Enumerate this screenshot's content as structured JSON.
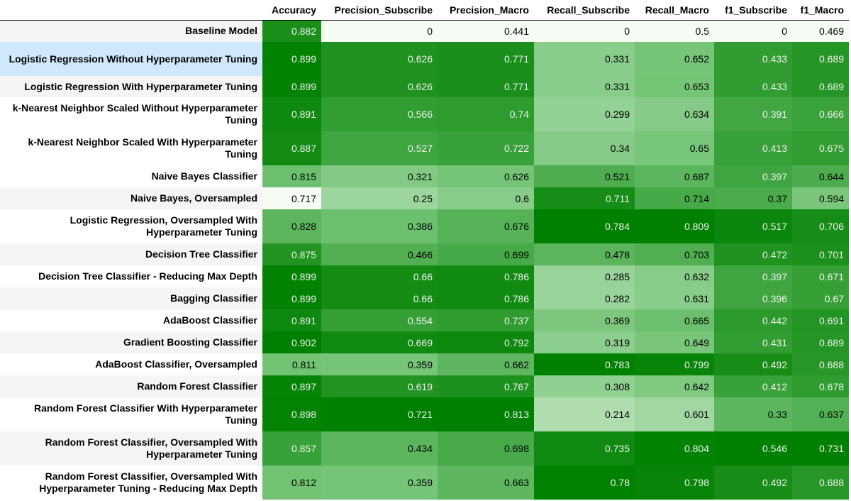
{
  "chart_data": {
    "type": "table",
    "columns": [
      "Accuracy",
      "Precision_Subscribe",
      "Precision_Macro",
      "Recall_Subscribe",
      "Recall_Macro",
      "f1_Subscribe",
      "f1_Macro"
    ],
    "colormap": {
      "low": "#f7fcf5",
      "mid": "#74c476",
      "high": "#008000"
    },
    "rows": [
      {
        "label": "Baseline Model",
        "values": [
          "0.882",
          "0",
          "0.441",
          "0",
          "0.5",
          "0",
          "0.469"
        ]
      },
      {
        "label": "Logistic Regression Without Hyperparameter Tuning",
        "values": [
          "0.899",
          "0.626",
          "0.771",
          "0.331",
          "0.652",
          "0.433",
          "0.689"
        ]
      },
      {
        "label": "Logistic Regression With Hyperparameter Tuning",
        "values": [
          "0.899",
          "0.626",
          "0.771",
          "0.331",
          "0.653",
          "0.433",
          "0.689"
        ]
      },
      {
        "label": "k-Nearest Neighbor Scaled Without Hyperparameter Tuning",
        "values": [
          "0.891",
          "0.566",
          "0.74",
          "0.299",
          "0.634",
          "0.391",
          "0.666"
        ]
      },
      {
        "label": "k-Nearest Neighbor Scaled With Hyperparameter Tuning",
        "values": [
          "0.887",
          "0.527",
          "0.722",
          "0.34",
          "0.65",
          "0.413",
          "0.675"
        ]
      },
      {
        "label": "Naive Bayes Classifier",
        "values": [
          "0.815",
          "0.321",
          "0.626",
          "0.521",
          "0.687",
          "0.397",
          "0.644"
        ]
      },
      {
        "label": "Naive Bayes, Oversampled",
        "values": [
          "0.717",
          "0.25",
          "0.6",
          "0.711",
          "0.714",
          "0.37",
          "0.594"
        ]
      },
      {
        "label": "Logistic Regression, Oversampled With Hyperparameter Tuning",
        "values": [
          "0.828",
          "0.386",
          "0.676",
          "0.784",
          "0.809",
          "0.517",
          "0.706"
        ]
      },
      {
        "label": "Decision Tree Classifier",
        "values": [
          "0.875",
          "0.466",
          "0.699",
          "0.478",
          "0.703",
          "0.472",
          "0.701"
        ]
      },
      {
        "label": "Decision Tree Classifier - Reducing Max Depth",
        "values": [
          "0.899",
          "0.66",
          "0.786",
          "0.285",
          "0.632",
          "0.397",
          "0.671"
        ]
      },
      {
        "label": "Bagging Classifier",
        "values": [
          "0.899",
          "0.66",
          "0.786",
          "0.282",
          "0.631",
          "0.396",
          "0.67"
        ]
      },
      {
        "label": "AdaBoost Classifier",
        "values": [
          "0.891",
          "0.554",
          "0.737",
          "0.369",
          "0.665",
          "0.442",
          "0.691"
        ]
      },
      {
        "label": "Gradient Boosting Classifier",
        "values": [
          "0.902",
          "0.669",
          "0.792",
          "0.319",
          "0.649",
          "0.431",
          "0.689"
        ]
      },
      {
        "label": "AdaBoost Classifier, Oversampled",
        "values": [
          "0.811",
          "0.359",
          "0.662",
          "0.783",
          "0.799",
          "0.492",
          "0.688"
        ]
      },
      {
        "label": "Random Forest Classifier",
        "values": [
          "0.897",
          "0.619",
          "0.767",
          "0.308",
          "0.642",
          "0.412",
          "0.678"
        ]
      },
      {
        "label": "Random Forest Classifier With Hyperparameter Tuning",
        "values": [
          "0.898",
          "0.721",
          "0.813",
          "0.214",
          "0.601",
          "0.33",
          "0.637"
        ]
      },
      {
        "label": "Random Forest Classifier, Oversampled With Hyperparameter Tuning",
        "values": [
          "0.857",
          "0.434",
          "0.698",
          "0.735",
          "0.804",
          "0.546",
          "0.731"
        ]
      },
      {
        "label": "Random Forest Classifier, Oversampled With Hyperparameter Tuning - Reducing Max Depth",
        "values": [
          "0.812",
          "0.359",
          "0.663",
          "0.78",
          "0.798",
          "0.492",
          "0.688"
        ]
      }
    ]
  }
}
